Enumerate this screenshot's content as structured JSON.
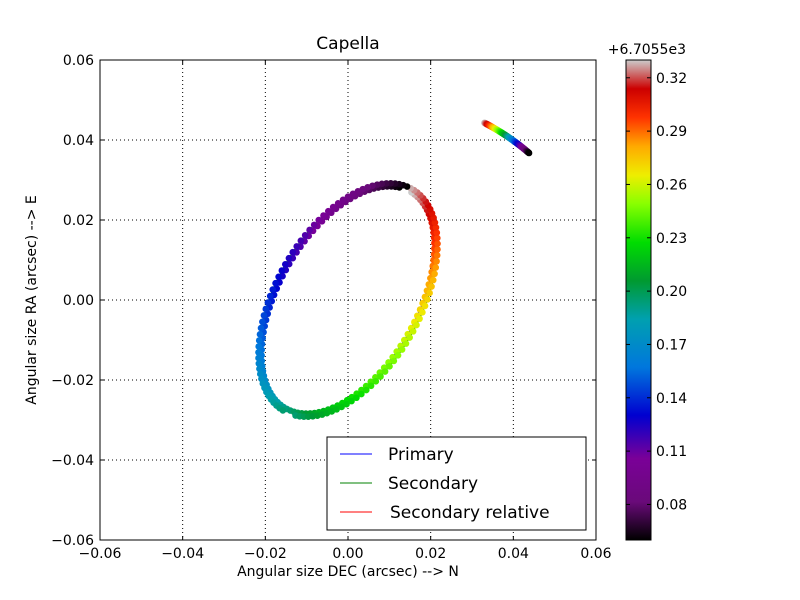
{
  "chart_data": {
    "type": "scatter",
    "title": "Capella",
    "xlabel": "Angular size DEC (arcsec) --> N",
    "ylabel": "Angular size RA (arcsec) --> E",
    "xlim": [
      -0.06,
      0.06
    ],
    "ylim": [
      -0.06,
      0.06
    ],
    "x_ticks": [
      "−0.06",
      "−0.04",
      "−0.02",
      "0.00",
      "0.02",
      "0.04",
      "0.06"
    ],
    "y_ticks": [
      "0.06",
      "0.04",
      "0.02",
      "0.00",
      "−0.02",
      "−0.04",
      "−0.06"
    ],
    "grid": true,
    "legend_position": "lower-right",
    "series": [
      {
        "name": "Primary",
        "color": "#0000ff",
        "orbit": {
          "center": [
            0.0,
            0.0
          ],
          "semi_major": 0.031,
          "semi_minor": 0.0168,
          "tilt_deg": 61.5
        }
      },
      {
        "name": "Secondary",
        "color": "#008000",
        "orbit": {
          "center": [
            0.0,
            0.0
          ],
          "semi_major": 0.0318,
          "semi_minor": 0.0176,
          "tilt_deg": 61.5
        }
      },
      {
        "name": "Secondary relative",
        "color": "#ff0000",
        "spiral": {
          "start": [
            0.033,
            0.0452
          ],
          "end": [
            0.0438,
            0.0375
          ],
          "turns": 1
        }
      }
    ],
    "colorbar": {
      "offset_label": "+6.7055e3",
      "range": [
        0.06,
        0.33
      ],
      "ticks": [
        "0.32",
        "0.29",
        "0.26",
        "0.23",
        "0.20",
        "0.17",
        "0.14",
        "0.11",
        "0.08"
      ],
      "colormap": "nipy_spectral"
    }
  }
}
